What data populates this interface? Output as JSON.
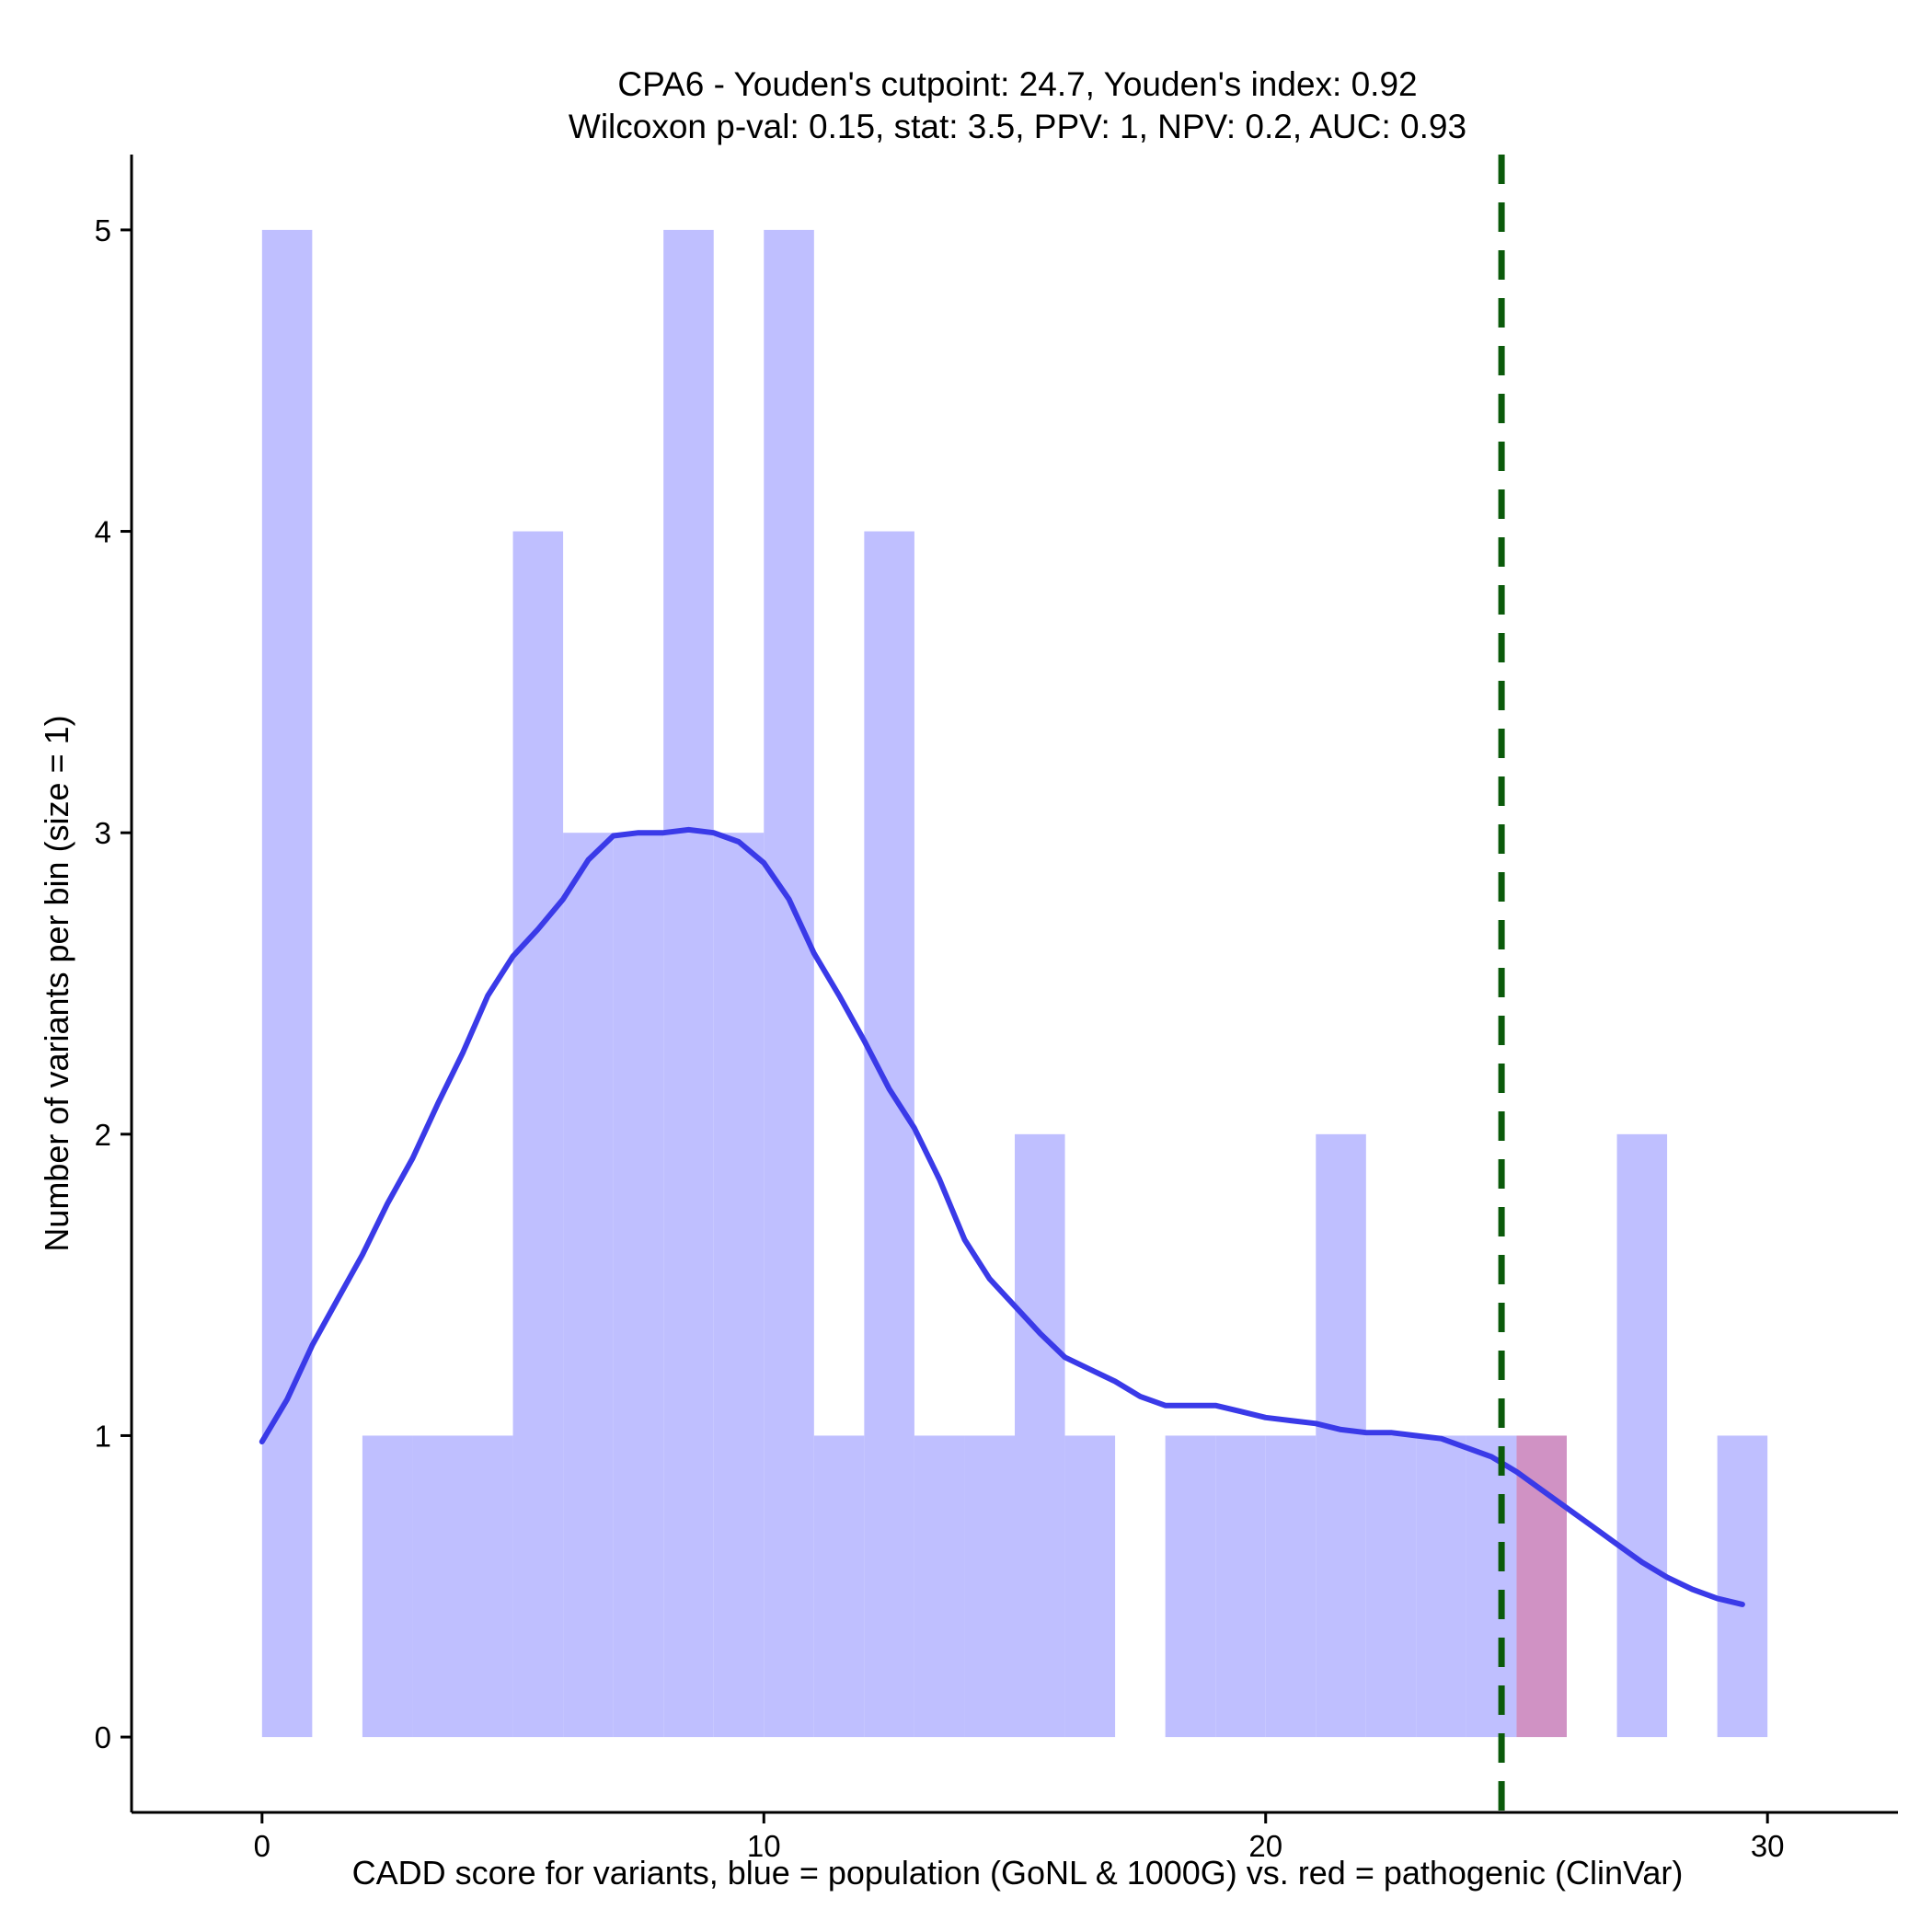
{
  "chart_data": {
    "type": "histogram",
    "title": "CPA6 - Youden's cutpoint: 24.7, Youden's index: 0.92",
    "subtitle": "Wilcoxon p-val: 0.15, stat: 3.5, PPV: 1, NPV: 0.2, AUC: 0.93",
    "xlabel": "CADD score for variants, blue = population (GoNL & 1000G) vs. red = pathogenic (ClinVar)",
    "ylabel": "Number of variants per bin (size = 1)",
    "xlim": [
      -2.6,
      32.6
    ],
    "ylim": [
      -0.25,
      5.25
    ],
    "xticks": [
      0,
      10,
      20,
      30
    ],
    "yticks": [
      0,
      1,
      2,
      3,
      4,
      5
    ],
    "bin_width": 1,
    "series": [
      {
        "name": "population (GoNL & 1000G)",
        "color": "#bfbfff",
        "bin_starts": [
          0,
          2,
          3,
          4,
          5,
          6,
          7,
          8,
          9,
          10,
          11,
          12,
          13,
          14,
          15,
          16,
          18,
          19,
          20,
          21,
          22,
          23,
          24,
          27,
          29
        ],
        "counts": [
          5,
          1,
          1,
          1,
          4,
          3,
          3,
          5,
          3,
          5,
          1,
          4,
          1,
          1,
          2,
          1,
          1,
          1,
          1,
          2,
          1,
          1,
          1,
          2,
          1
        ]
      },
      {
        "name": "pathogenic (ClinVar)",
        "color": "#d092c4",
        "bin_starts": [
          25
        ],
        "counts": [
          1
        ]
      }
    ],
    "density_curve": {
      "color": "#3a3ae8",
      "x": [
        0.0,
        0.5,
        1.0,
        1.5,
        2.0,
        2.5,
        3.0,
        3.5,
        4.0,
        4.5,
        5.0,
        5.5,
        6.0,
        6.5,
        7.0,
        7.5,
        8.0,
        8.5,
        9.0,
        9.5,
        10.0,
        10.5,
        11.0,
        11.5,
        12.0,
        12.5,
        13.0,
        13.5,
        14.0,
        14.5,
        15.0,
        15.5,
        16.0,
        16.5,
        17.0,
        17.5,
        18.0,
        18.5,
        19.0,
        19.5,
        20.0,
        20.5,
        21.0,
        21.5,
        22.0,
        22.5,
        23.0,
        23.5,
        24.0,
        24.5,
        25.0,
        25.5,
        26.0,
        26.5,
        27.0,
        27.5,
        28.0,
        28.5,
        29.0,
        29.5
      ],
      "y": [
        0.98,
        1.12,
        1.3,
        1.45,
        1.6,
        1.77,
        1.92,
        2.1,
        2.27,
        2.46,
        2.59,
        2.68,
        2.78,
        2.91,
        2.99,
        3.0,
        3.0,
        3.01,
        3.0,
        2.97,
        2.9,
        2.78,
        2.6,
        2.46,
        2.31,
        2.15,
        2.02,
        1.85,
        1.65,
        1.52,
        1.43,
        1.34,
        1.26,
        1.22,
        1.18,
        1.13,
        1.1,
        1.1,
        1.1,
        1.08,
        1.06,
        1.05,
        1.04,
        1.02,
        1.01,
        1.01,
        1.0,
        0.99,
        0.96,
        0.93,
        0.88,
        0.82,
        0.76,
        0.7,
        0.64,
        0.58,
        0.53,
        0.49,
        0.46,
        0.44
      ]
    },
    "cutpoint": {
      "value": 24.7,
      "color": "#0b5a0b",
      "style": "dashed"
    },
    "grid": false
  }
}
